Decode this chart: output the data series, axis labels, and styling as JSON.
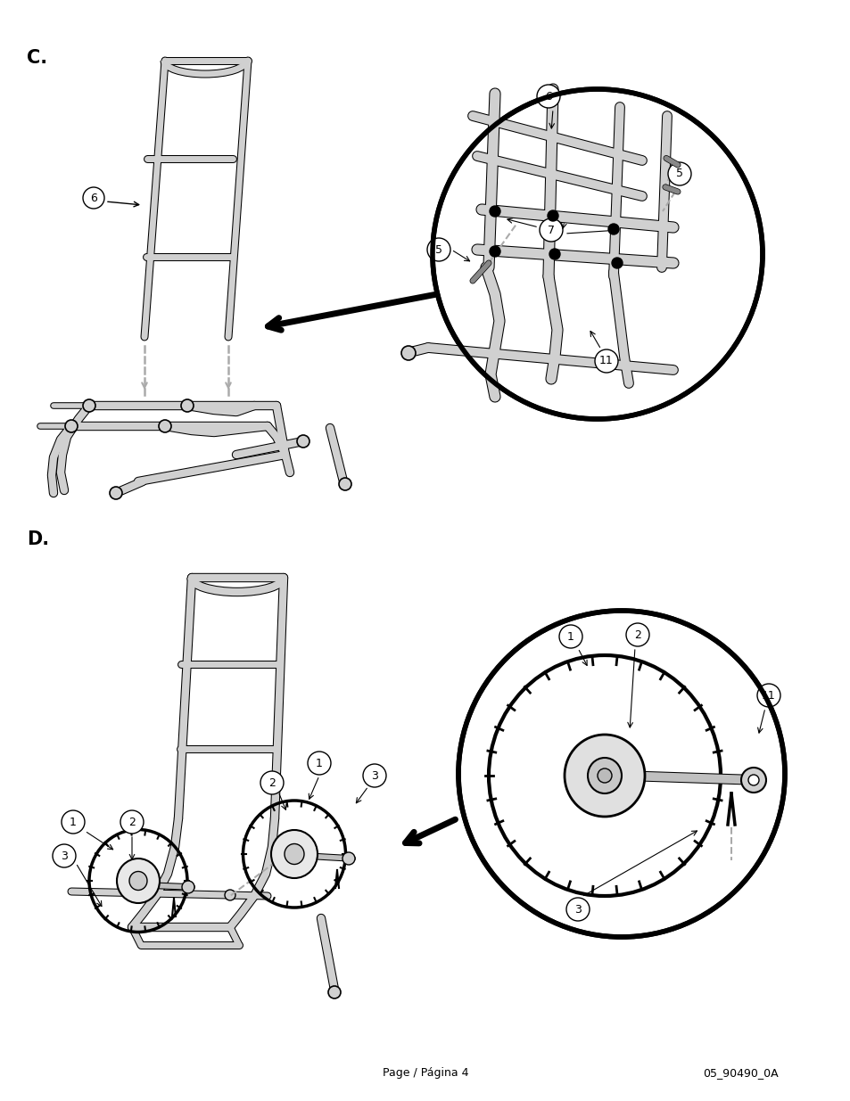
{
  "page_label": "Page / Página 4",
  "doc_ref": "05_90490_0A",
  "section_c_label": "C.",
  "section_d_label": "D.",
  "bg_color": "#ffffff",
  "footer_fontsize": 9,
  "section_fontsize": 15,
  "figsize": [
    9.54,
    12.35
  ],
  "dpi": 100
}
